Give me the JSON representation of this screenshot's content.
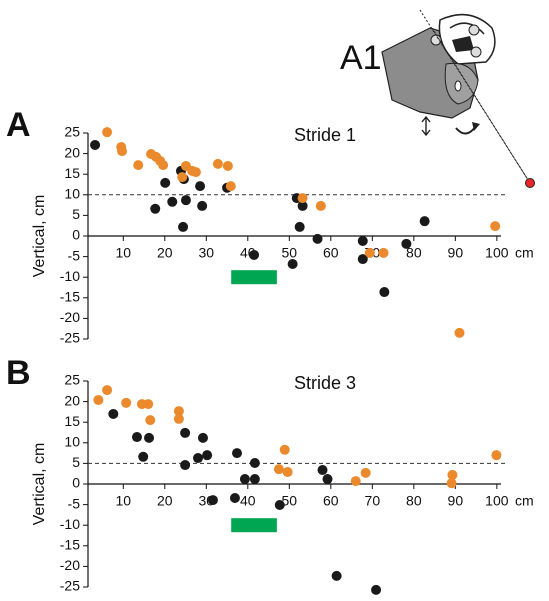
{
  "inset_label": "A1",
  "chart_data": [
    {
      "type": "scatter",
      "panel": "A",
      "title": "Stride 1",
      "y_label": "Vertical, cm",
      "x_unit": "cm",
      "xlim": [
        1.5,
        101
      ],
      "ylim": [
        -25,
        25
      ],
      "xticks": [
        10,
        20,
        30,
        40,
        50,
        60,
        70,
        80,
        90,
        100
      ],
      "yticks": [
        25,
        20,
        15,
        10,
        5,
        0,
        -5,
        -10,
        -15,
        -20,
        -25
      ],
      "hline": 10,
      "bar": {
        "x": [
          36,
          47
        ],
        "y": -10,
        "color": "#00a651"
      },
      "series": [
        {
          "color": "#1a1a1a",
          "x": [
            3.2,
            23.9,
            20.1,
            24.6,
            21.8,
            17.7,
            25.1,
            28.5,
            29.0,
            24.4,
            35.0,
            41.5,
            51.8,
            53.2,
            50.8,
            52.5,
            56.8,
            67.7,
            67.7,
            72.9,
            78.2,
            82.6
          ],
          "y": [
            22.1,
            15.8,
            12.9,
            13.8,
            8.3,
            6.6,
            8.7,
            12.1,
            7.3,
            2.2,
            11.7,
            -4.6,
            9.2,
            7.3,
            -6.8,
            2.2,
            -0.7,
            -1.2,
            -5.6,
            -13.6,
            -1.9,
            3.6
          ]
        },
        {
          "color": "#ea8a2c",
          "x": [
            6.1,
            9.5,
            9.7,
            13.6,
            16.7,
            17.9,
            18.9,
            19.6,
            24.2,
            25.1,
            26.6,
            27.5,
            32.8,
            35.2,
            35.9,
            53.2,
            57.6,
            69.4,
            72.7,
            91.0,
            99.6
          ],
          "y": [
            25.2,
            21.6,
            20.6,
            17.2,
            19.9,
            19.2,
            18.2,
            17.2,
            14.3,
            17.0,
            15.8,
            15.5,
            17.5,
            17.0,
            12.1,
            9.2,
            7.3,
            -4.1,
            -4.1,
            -23.5,
            2.4
          ]
        }
      ]
    },
    {
      "type": "scatter",
      "panel": "B",
      "title": "Stride 3",
      "y_label": "Vertical, cm",
      "x_unit": "cm",
      "xlim": [
        1.5,
        101
      ],
      "ylim": [
        -25,
        25
      ],
      "xticks": [
        10,
        20,
        30,
        40,
        50,
        60,
        70,
        80,
        90,
        100
      ],
      "yticks": [
        25,
        20,
        15,
        10,
        5,
        0,
        -5,
        -10,
        -15,
        -20,
        -25
      ],
      "hline": 5,
      "bar": {
        "x": [
          36,
          47
        ],
        "y": -10,
        "color": "#00a651"
      },
      "series": [
        {
          "color": "#1a1a1a",
          "x": [
            7.6,
            13.3,
            14.8,
            16.2,
            24.9,
            24.9,
            29.2,
            28.0,
            30.2,
            31.6,
            36.9,
            37.4,
            39.3,
            41.7,
            41.7,
            47.7,
            58.0,
            59.2,
            61.4,
            70.9
          ],
          "y": [
            17.0,
            11.4,
            6.6,
            11.2,
            12.4,
            4.6,
            11.2,
            6.3,
            7.0,
            -3.9,
            -3.4,
            7.5,
            1.2,
            5.1,
            1.2,
            -5.1,
            3.4,
            1.2,
            -22.3,
            -25.7
          ]
        },
        {
          "color": "#ea8a2c",
          "x": [
            4.0,
            6.1,
            10.7,
            14.5,
            16.0,
            16.5,
            23.4,
            23.4,
            47.5,
            48.9,
            49.6,
            66.0,
            68.4,
            89.3,
            89.1,
            99.9
          ],
          "y": [
            20.4,
            22.8,
            19.7,
            19.4,
            19.4,
            15.5,
            17.7,
            15.8,
            3.6,
            8.3,
            2.9,
            0.7,
            2.7,
            2.2,
            0.2,
            7.0
          ]
        }
      ]
    }
  ]
}
